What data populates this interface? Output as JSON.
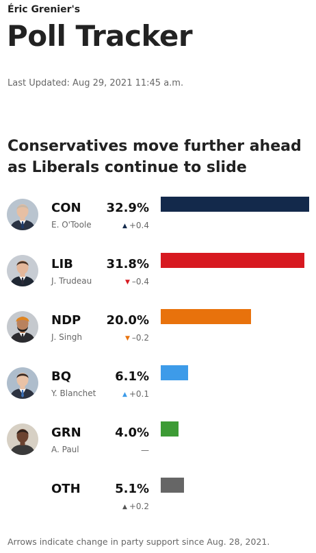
{
  "header": {
    "kicker": "Éric Grenier's",
    "title": "Poll Tracker",
    "updated": "Last Updated: Aug 29, 2021 11:45 a.m."
  },
  "headline": "Conservatives move further ahead as Liberals continue to slide",
  "footnote": "Arrows indicate change in party support since Aug. 28, 2021.",
  "chart_data": {
    "type": "bar",
    "orientation": "horizontal",
    "title": "Conservatives move further ahead as Liberals continue to slide",
    "categories": [
      "CON",
      "LIB",
      "NDP",
      "BQ",
      "GRN",
      "OTH"
    ],
    "values": [
      32.9,
      31.8,
      20.0,
      6.1,
      4.0,
      5.1
    ],
    "xlim": [
      0,
      33
    ],
    "grid": false,
    "rows": [
      {
        "party": "CON",
        "leader": "E. O'Toole",
        "pct": "32.9%",
        "value": 32.9,
        "change": "+0.4",
        "direction": "up",
        "color": "#13294b",
        "arrow_color": "#13294b"
      },
      {
        "party": "LIB",
        "leader": "J. Trudeau",
        "pct": "31.8%",
        "value": 31.8,
        "change": "–0.4",
        "direction": "down",
        "color": "#d71920",
        "arrow_color": "#d71920"
      },
      {
        "party": "NDP",
        "leader": "J. Singh",
        "pct": "20.0%",
        "value": 20.0,
        "change": "–0.2",
        "direction": "down",
        "color": "#e8720c",
        "arrow_color": "#e8720c"
      },
      {
        "party": "BQ",
        "leader": "Y. Blanchet",
        "pct": "6.1%",
        "value": 6.1,
        "change": "+0.1",
        "direction": "up",
        "color": "#3d9be9",
        "arrow_color": "#3d9be9"
      },
      {
        "party": "GRN",
        "leader": "A. Paul",
        "pct": "4.0%",
        "value": 4.0,
        "change": "—",
        "direction": "none",
        "color": "#3d9b35",
        "arrow_color": "#666666"
      },
      {
        "party": "OTH",
        "leader": "",
        "pct": "5.1%",
        "value": 5.1,
        "change": "+0.2",
        "direction": "up",
        "color": "#666666",
        "arrow_color": "#555555"
      }
    ]
  }
}
